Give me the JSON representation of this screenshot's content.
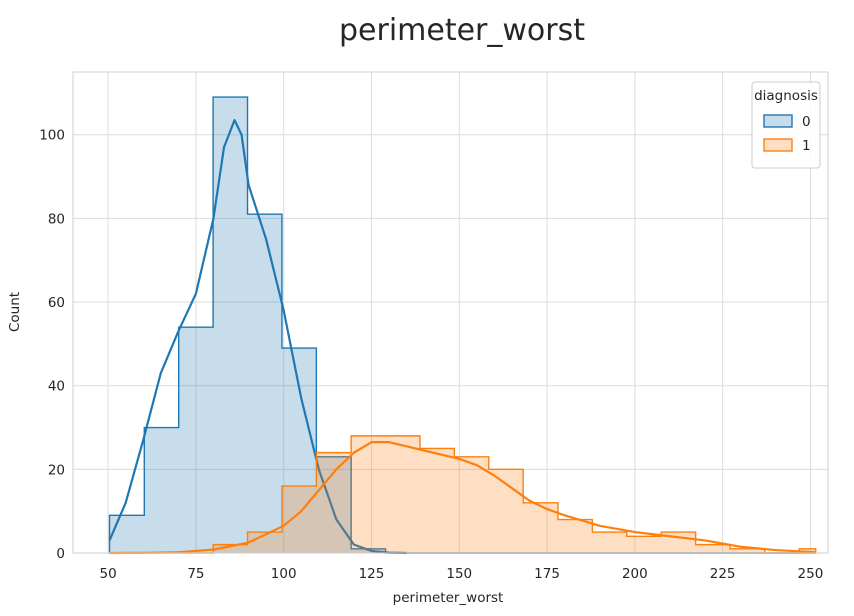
{
  "chart_data": {
    "type": "histogram",
    "title": "perimeter_worst",
    "xlabel": "perimeter_worst",
    "ylabel": "Count",
    "xlim": [
      40,
      255
    ],
    "ylim": [
      0,
      115
    ],
    "xticks": [
      50,
      75,
      100,
      125,
      150,
      175,
      200,
      225,
      250
    ],
    "yticks": [
      0,
      20,
      40,
      60,
      80,
      100
    ],
    "grid": true,
    "legend": {
      "title": "diagnosis",
      "placement": "top-right"
    },
    "bin_edges": [
      50.4,
      60.3,
      70.1,
      79.9,
      89.7,
      99.5,
      109.3,
      119.2,
      129.0,
      138.8,
      148.6,
      158.4,
      168.2,
      178.1,
      187.9,
      197.7,
      207.5,
      217.3,
      227.1,
      237.0,
      246.8,
      251.5
    ],
    "series": [
      {
        "name": "0",
        "color": "#1f77b4",
        "counts": [
          9,
          30,
          54,
          109,
          81,
          49,
          23,
          1,
          0,
          0,
          0,
          0,
          0,
          0,
          0,
          0,
          0,
          0,
          0,
          0,
          0
        ],
        "kde_x": [
          50.4,
          55,
          60,
          65,
          70,
          75,
          80,
          83,
          86,
          88,
          90,
          95,
          100,
          105,
          110,
          115,
          120,
          125,
          130,
          135
        ],
        "kde_y": [
          3,
          12,
          27,
          43,
          53,
          62,
          80,
          97,
          103.5,
          100,
          88,
          75,
          58,
          37,
          20,
          8,
          2,
          0.5,
          0.1,
          0
        ]
      },
      {
        "name": "1",
        "color": "#ff7f0e",
        "counts": [
          0,
          0,
          0,
          2,
          5,
          16,
          24,
          28,
          28,
          25,
          23,
          20,
          12,
          8,
          5,
          4,
          5,
          2,
          1,
          0,
          1
        ],
        "kde_x": [
          50.4,
          60,
          70,
          80,
          90,
          100,
          105,
          110,
          115,
          120,
          125,
          130,
          135,
          140,
          145,
          150,
          155,
          160,
          165,
          170,
          175,
          180,
          190,
          200,
          210,
          220,
          230,
          240,
          251.5
        ],
        "kde_y": [
          0,
          0.05,
          0.2,
          0.8,
          2.5,
          6.5,
          10,
          15,
          20,
          24,
          26.5,
          26.5,
          25.5,
          24.5,
          23.5,
          22.5,
          21,
          18.5,
          15.5,
          12.5,
          10.5,
          9,
          6.5,
          5,
          4,
          3,
          1.5,
          0.7,
          0.2
        ]
      }
    ]
  }
}
